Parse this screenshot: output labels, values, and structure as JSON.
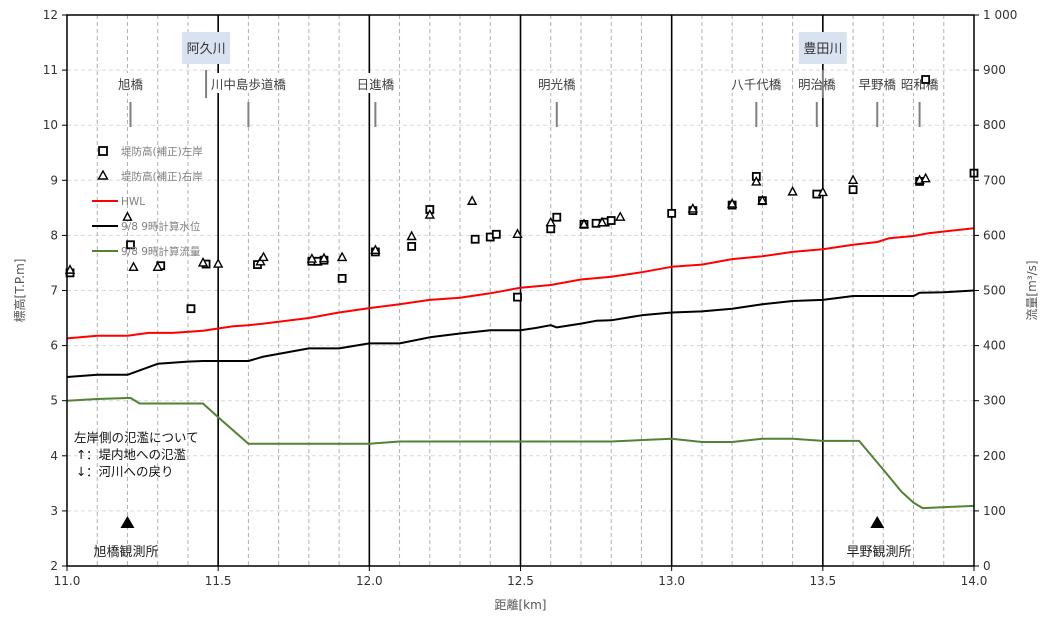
{
  "chart_data": {
    "type": "line",
    "xlabel": "距離[km]",
    "ylabel": "標高[T.P.m]",
    "y2label": "流量[m³/s]",
    "xlim": [
      11.0,
      14.0
    ],
    "ylim": [
      2,
      12
    ],
    "y2lim": [
      0,
      1000
    ],
    "x_ticks": [
      "11.0",
      "11.5",
      "12.0",
      "12.5",
      "13.0",
      "13.5",
      "14.0"
    ],
    "y_ticks": [
      "2",
      "3",
      "4",
      "5",
      "6",
      "7",
      "8",
      "9",
      "10",
      "11",
      "12"
    ],
    "y2_ticks": [
      "0",
      "100",
      "200",
      "300",
      "400",
      "500",
      "600",
      "700",
      "800",
      "900",
      "1 000"
    ],
    "grid": true,
    "legend_position": "upper-left",
    "legend": [
      {
        "label": "堤防高(補正)左岸",
        "marker": "square",
        "color": "#000000"
      },
      {
        "label": "堤防高(補正)右岸",
        "marker": "triangle",
        "color": "#000000"
      },
      {
        "label": "HWL",
        "color": "#ff0000"
      },
      {
        "label": "9/8 9時計算水位",
        "color": "#000000"
      },
      {
        "label": "9/8 9時計算流量",
        "color": "#548235"
      }
    ],
    "series": [
      {
        "name": "HWL",
        "axis": "left",
        "color": "#ff0000",
        "x": [
          11.0,
          11.1,
          11.2,
          11.27,
          11.35,
          11.45,
          11.55,
          11.6,
          11.65,
          11.8,
          11.9,
          12.0,
          12.1,
          12.2,
          12.3,
          12.4,
          12.5,
          12.6,
          12.7,
          12.8,
          12.9,
          13.0,
          13.1,
          13.2,
          13.3,
          13.4,
          13.5,
          13.6,
          13.68,
          13.72,
          13.8,
          13.85,
          13.9,
          14.0
        ],
        "values": [
          6.13,
          6.18,
          6.18,
          6.23,
          6.23,
          6.27,
          6.35,
          6.37,
          6.4,
          6.5,
          6.6,
          6.68,
          6.75,
          6.83,
          6.87,
          6.95,
          7.05,
          7.1,
          7.2,
          7.25,
          7.33,
          7.43,
          7.47,
          7.57,
          7.62,
          7.7,
          7.75,
          7.83,
          7.88,
          7.95,
          7.99,
          8.04,
          8.07,
          8.13
        ]
      },
      {
        "name": "9/8 9時計算水位",
        "axis": "left",
        "color": "#000000",
        "x": [
          11.0,
          11.1,
          11.2,
          11.3,
          11.4,
          11.45,
          11.6,
          11.65,
          11.8,
          11.9,
          12.0,
          12.1,
          12.2,
          12.3,
          12.4,
          12.5,
          12.55,
          12.6,
          12.62,
          12.7,
          12.75,
          12.8,
          12.9,
          13.0,
          13.1,
          13.2,
          13.3,
          13.4,
          13.5,
          13.6,
          13.7,
          13.8,
          13.82,
          13.9,
          14.0
        ],
        "values": [
          5.43,
          5.47,
          5.47,
          5.67,
          5.71,
          5.72,
          5.72,
          5.8,
          5.95,
          5.95,
          6.04,
          6.04,
          6.15,
          6.22,
          6.28,
          6.28,
          6.32,
          6.37,
          6.33,
          6.4,
          6.45,
          6.46,
          6.55,
          6.6,
          6.62,
          6.67,
          6.75,
          6.81,
          6.83,
          6.9,
          6.9,
          6.9,
          6.96,
          6.97,
          7.0
        ]
      },
      {
        "name": "9/8 9時計算流量",
        "axis": "right",
        "color": "#548235",
        "x": [
          11.0,
          11.1,
          11.21,
          11.24,
          11.3,
          11.45,
          11.5,
          11.6,
          11.8,
          12.0,
          12.1,
          12.2,
          12.5,
          12.8,
          13.0,
          13.1,
          13.2,
          13.3,
          13.4,
          13.5,
          13.6,
          13.62,
          13.7,
          13.76,
          13.8,
          13.83,
          14.0
        ],
        "values": [
          300,
          303,
          305,
          295,
          295,
          295,
          270,
          222,
          222,
          222,
          226,
          226,
          226,
          226,
          231,
          225,
          225,
          231,
          231,
          227,
          227,
          227,
          175,
          135,
          115,
          105,
          109
        ]
      }
    ],
    "scatter": [
      {
        "name": "堤防高(補正)左岸",
        "marker": "square",
        "points": [
          [
            11.01,
            7.32
          ],
          [
            11.21,
            7.83
          ],
          [
            11.31,
            7.45
          ],
          [
            11.41,
            6.67
          ],
          [
            11.46,
            7.48
          ],
          [
            11.63,
            7.47
          ],
          [
            11.81,
            7.53
          ],
          [
            11.83,
            7.53
          ],
          [
            11.85,
            7.55
          ],
          [
            11.91,
            7.22
          ],
          [
            12.02,
            7.7
          ],
          [
            12.14,
            7.8
          ],
          [
            12.2,
            8.47
          ],
          [
            12.35,
            7.93
          ],
          [
            12.4,
            7.97
          ],
          [
            12.42,
            8.02
          ],
          [
            12.49,
            6.88
          ],
          [
            12.6,
            8.12
          ],
          [
            12.62,
            8.33
          ],
          [
            12.71,
            8.2
          ],
          [
            12.75,
            8.22
          ],
          [
            12.78,
            8.24
          ],
          [
            12.8,
            8.27
          ],
          [
            13.0,
            8.4
          ],
          [
            13.07,
            8.45
          ],
          [
            13.2,
            8.55
          ],
          [
            13.28,
            9.07
          ],
          [
            13.3,
            8.63
          ],
          [
            13.48,
            8.75
          ],
          [
            13.6,
            8.83
          ],
          [
            13.82,
            8.98
          ],
          [
            13.84,
            10.83
          ],
          [
            14.0,
            9.13
          ]
        ]
      },
      {
        "name": "堤防高(補正)右岸",
        "marker": "triangle",
        "points": [
          [
            11.01,
            7.37
          ],
          [
            11.2,
            8.33
          ],
          [
            11.22,
            7.42
          ],
          [
            11.3,
            7.42
          ],
          [
            11.45,
            7.5
          ],
          [
            11.5,
            7.48
          ],
          [
            11.64,
            7.52
          ],
          [
            11.65,
            7.6
          ],
          [
            11.81,
            7.57
          ],
          [
            11.85,
            7.58
          ],
          [
            11.91,
            7.6
          ],
          [
            12.02,
            7.73
          ],
          [
            12.14,
            7.98
          ],
          [
            12.2,
            8.37
          ],
          [
            12.34,
            8.62
          ],
          [
            12.49,
            8.02
          ],
          [
            12.6,
            8.23
          ],
          [
            12.71,
            8.2
          ],
          [
            12.77,
            8.23
          ],
          [
            12.83,
            8.33
          ],
          [
            13.07,
            8.48
          ],
          [
            13.2,
            8.57
          ],
          [
            13.28,
            8.97
          ],
          [
            13.3,
            8.63
          ],
          [
            13.4,
            8.79
          ],
          [
            13.5,
            8.78
          ],
          [
            13.6,
            9.0
          ],
          [
            13.82,
            9.0
          ],
          [
            13.84,
            9.03
          ]
        ]
      }
    ],
    "bridges": [
      {
        "name": "旭橋",
        "x": 11.21
      },
      {
        "name": "川中島歩道橋",
        "x": 11.6
      },
      {
        "name": "日進橋",
        "x": 12.02
      },
      {
        "name": "明光橋",
        "x": 12.62
      },
      {
        "name": "八千代橋",
        "x": 13.28
      },
      {
        "name": "明治橋",
        "x": 13.48
      },
      {
        "name": "早野橋",
        "x": 13.68
      },
      {
        "name": "昭和橋",
        "x": 13.82
      }
    ],
    "tributaries": [
      {
        "name": "阿久川",
        "x": 11.46
      },
      {
        "name": "豊田川",
        "x": 13.5
      }
    ],
    "stations": [
      {
        "name": "旭橋観測所",
        "x": 11.2
      },
      {
        "name": "早野観測所",
        "x": 13.68
      }
    ],
    "annotations": {
      "title": "左岸側の氾濫について",
      "up_arrow": "↑",
      "up_text": "：堤内地への氾濫",
      "down_arrow": "↓",
      "down_text": "：河川への戻り"
    },
    "major_x_lines": [
      11.5,
      12.0,
      12.5,
      13.0,
      13.5
    ],
    "minor_x_lines": [
      11.1,
      11.2,
      11.3,
      11.4,
      11.6,
      11.7,
      11.8,
      11.9,
      12.1,
      12.2,
      12.3,
      12.4,
      12.6,
      12.7,
      12.8,
      12.9,
      13.1,
      13.2,
      13.3,
      13.4,
      13.6,
      13.7,
      13.8,
      13.9
    ]
  }
}
